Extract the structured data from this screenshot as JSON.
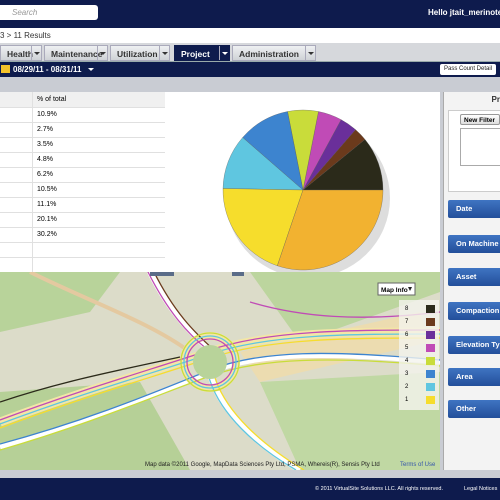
{
  "header": {
    "search_placeholder": "Search",
    "greeting": "Hello jtait_merinote"
  },
  "breadcrumb": "3 > 11 Results",
  "tabs": [
    "Health",
    "Maintenance",
    "Utilization",
    "Project",
    "Administration"
  ],
  "active_tab_index": 3,
  "date_range": "08/29/11 - 08/31/11",
  "detail_button": "Pass Count Detail",
  "table": {
    "column_header": "% of total"
  },
  "chart_data": {
    "type": "pie",
    "values": [
      10.9,
      2.7,
      3.5,
      4.8,
      6.2,
      10.5,
      11.1,
      20.1,
      30.2
    ],
    "value_labels": [
      "10.9%",
      "2.7%",
      "3.5%",
      "4.8%",
      "6.2%",
      "10.5%",
      "11.1%",
      "20.1%",
      "30.2%"
    ],
    "colors": [
      "#2b2a1a",
      "#6b3a1c",
      "#6a2f9a",
      "#c04bb6",
      "#c9dc3a",
      "#3d84cf",
      "#5fc6e0",
      "#f6dd2c",
      "#f2b230"
    ]
  },
  "map": {
    "info_button": "Map Info",
    "legend": [
      "8",
      "7",
      "6",
      "5",
      "4",
      "3",
      "2",
      "1"
    ],
    "legend_colors": [
      "#2b2a1a",
      "#6b3a1c",
      "#6a2f9a",
      "#c04bb6",
      "#c9dc3a",
      "#3d84cf",
      "#5fc6e0",
      "#f6dd2c"
    ],
    "credit": "Map data ©2011 Google, MapData Sciences Pty Ltd, PSMA, Whereis(R), Sensis Pty Ltd",
    "terms": "Terms of Use"
  },
  "filter_panel": {
    "title": "Pr",
    "new_filter": "New Filter",
    "sections": [
      "Date",
      "On Machine",
      "Asset",
      "Compaction",
      "Elevation Ty",
      "Area",
      "Other"
    ]
  },
  "footer": {
    "copyright": "© 2011 VirtualSite Solutions LLC. All rights reserved.",
    "legal": "Legal Notices"
  }
}
